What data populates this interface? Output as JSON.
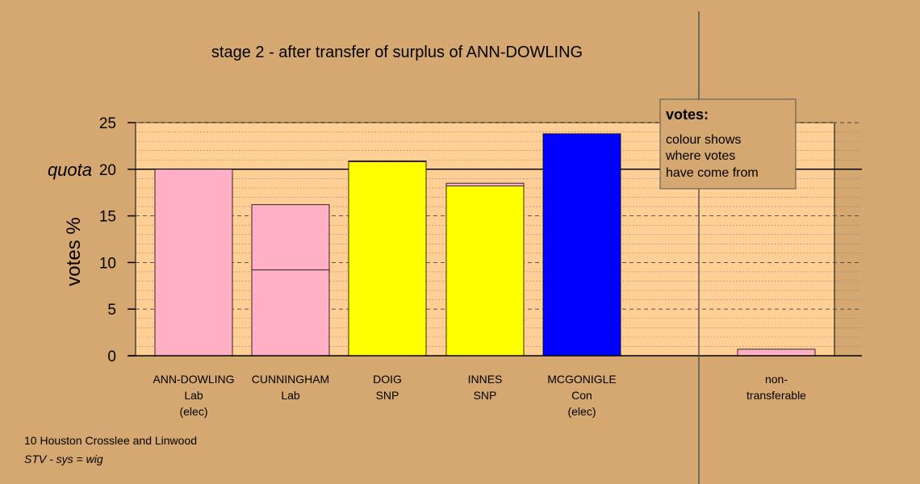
{
  "chart_data": {
    "type": "bar",
    "title": "stage 2 - after transfer of surplus of ANN-DOWLING",
    "ylabel": "votes %",
    "ylim": [
      0,
      25
    ],
    "yticks": [
      "0",
      "5",
      "10",
      "15",
      "20",
      "25"
    ],
    "quota": 20,
    "quota_label": "quota",
    "categories": [
      {
        "lines": [
          "ANN-DOWLING",
          "Lab",
          "(elec)"
        ]
      },
      {
        "lines": [
          "CUNNINGHAM",
          "Lab"
        ]
      },
      {
        "lines": [
          "DOIG",
          "SNP"
        ]
      },
      {
        "lines": [
          "INNES",
          "SNP"
        ]
      },
      {
        "lines": [
          "MCGONIGLE",
          "Con",
          "(elec)"
        ]
      },
      {
        "lines": [
          "non-",
          "transferable"
        ]
      }
    ],
    "bars": [
      {
        "segments": [
          {
            "value": 20.0,
            "color": "#ffb0c4"
          }
        ]
      },
      {
        "segments": [
          {
            "value": 9.2,
            "color": "#ffb0c4"
          },
          {
            "value": 7.0,
            "color": "#ffb0c4"
          }
        ]
      },
      {
        "segments": [
          {
            "value": 20.8,
            "color": "#ffff00"
          },
          {
            "value": 0.1,
            "color": "#ffb0c4"
          }
        ]
      },
      {
        "segments": [
          {
            "value": 18.2,
            "color": "#ffff00"
          },
          {
            "value": 0.3,
            "color": "#ffb0c4"
          }
        ]
      },
      {
        "segments": [
          {
            "value": 23.8,
            "color": "#0000ff"
          }
        ]
      },
      {
        "segments": [
          {
            "value": 0.7,
            "color": "#ffb0c4"
          }
        ]
      }
    ],
    "plot_background": "#ffcf95",
    "page_background": "#d4a870",
    "legend": {
      "title": "votes:",
      "lines": [
        "colour shows",
        "where votes",
        "have come from"
      ],
      "position": "top-right"
    }
  },
  "footer": {
    "line1": "10 Houston Crosslee and Linwood",
    "line2": "STV - sys = wig"
  }
}
